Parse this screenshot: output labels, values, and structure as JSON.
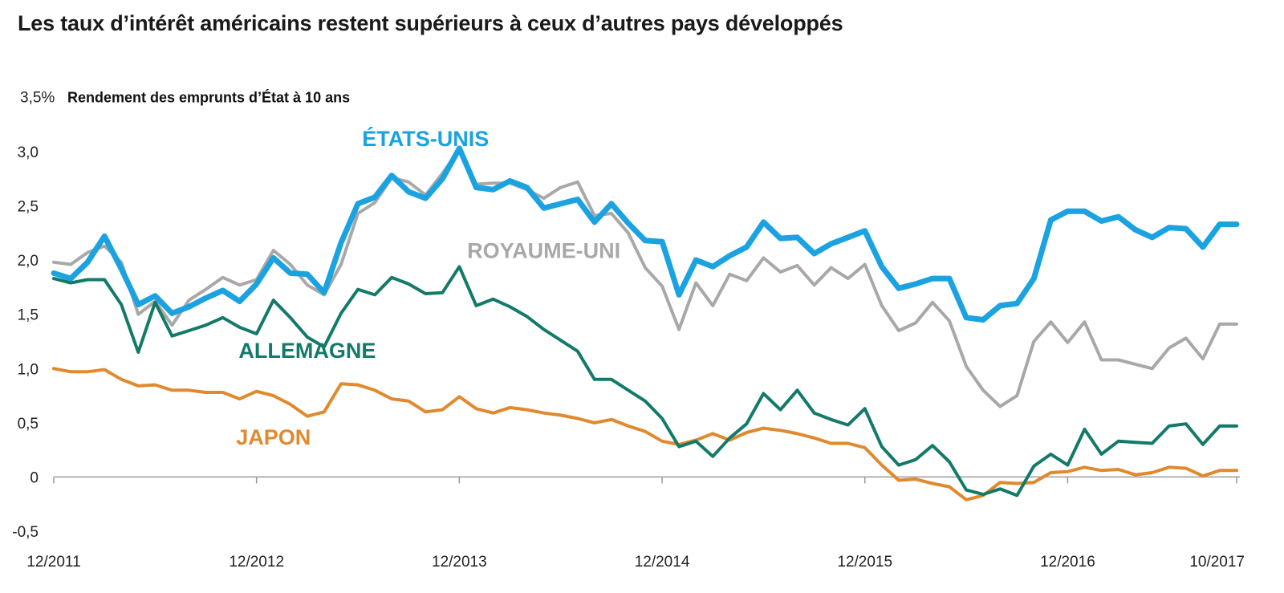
{
  "title": "Les taux d’intérêt américains restent supérieurs à ceux d’autres pays développés",
  "chart_data": {
    "type": "line",
    "title": "Les taux d’intérêt américains restent supérieurs à ceux d’autres pays développés",
    "ylabel": "Rendement des emprunts d’État à 10 ans",
    "ytop_label": "3,5%",
    "ylim": [
      -0.5,
      3.5
    ],
    "yticks": [
      {
        "value": 3.0,
        "label": "3,0"
      },
      {
        "value": 2.5,
        "label": "2,5"
      },
      {
        "value": 2.0,
        "label": "2,0"
      },
      {
        "value": 1.5,
        "label": "1,5"
      },
      {
        "value": 1.0,
        "label": "1,0"
      },
      {
        "value": 0.5,
        "label": "0,5"
      },
      {
        "value": 0,
        "label": "0"
      },
      {
        "value": -0.5,
        "label": "-0,5"
      }
    ],
    "xlim": [
      "2011-12",
      "2017-10"
    ],
    "xticks": [
      {
        "value": "2011-12",
        "label": "12/2011"
      },
      {
        "value": "2012-12",
        "label": "12/2012"
      },
      {
        "value": "2013-12",
        "label": "12/2013"
      },
      {
        "value": "2014-12",
        "label": "12/2014"
      },
      {
        "value": "2015-12",
        "label": "12/2015"
      },
      {
        "value": "2016-12",
        "label": "12/2016"
      },
      {
        "value": "2017-10",
        "label": "10/2017"
      }
    ],
    "grid": false,
    "legend": "inline labels",
    "x": [
      "2011-12",
      "2012-01",
      "2012-02",
      "2012-03",
      "2012-04",
      "2012-05",
      "2012-06",
      "2012-07",
      "2012-08",
      "2012-09",
      "2012-10",
      "2012-11",
      "2012-12",
      "2013-01",
      "2013-02",
      "2013-03",
      "2013-04",
      "2013-05",
      "2013-06",
      "2013-07",
      "2013-08",
      "2013-09",
      "2013-10",
      "2013-11",
      "2013-12",
      "2014-01",
      "2014-02",
      "2014-03",
      "2014-04",
      "2014-05",
      "2014-06",
      "2014-07",
      "2014-08",
      "2014-09",
      "2014-10",
      "2014-11",
      "2014-12",
      "2015-01",
      "2015-02",
      "2015-03",
      "2015-04",
      "2015-05",
      "2015-06",
      "2015-07",
      "2015-08",
      "2015-09",
      "2015-10",
      "2015-11",
      "2015-12",
      "2016-01",
      "2016-02",
      "2016-03",
      "2016-04",
      "2016-05",
      "2016-06",
      "2016-07",
      "2016-08",
      "2016-09",
      "2016-10",
      "2016-11",
      "2016-12",
      "2017-01",
      "2017-02",
      "2017-03",
      "2017-04",
      "2017-05",
      "2017-06",
      "2017-07",
      "2017-08",
      "2017-09",
      "2017-10"
    ],
    "series": [
      {
        "name": "ÉTATS-UNIS",
        "color": "#1aa3e0",
        "width": 7,
        "label_x": "2013-10",
        "label_y": 3.05,
        "values": [
          1.88,
          1.83,
          1.98,
          2.22,
          1.92,
          1.59,
          1.67,
          1.51,
          1.57,
          1.65,
          1.72,
          1.62,
          1.78,
          2.02,
          1.88,
          1.87,
          1.7,
          2.16,
          2.52,
          2.58,
          2.78,
          2.63,
          2.57,
          2.75,
          3.03,
          2.67,
          2.65,
          2.73,
          2.67,
          2.48,
          2.52,
          2.56,
          2.35,
          2.52,
          2.34,
          2.18,
          2.17,
          1.68,
          2.0,
          1.94,
          2.04,
          2.12,
          2.35,
          2.2,
          2.21,
          2.06,
          2.15,
          2.21,
          2.27,
          1.94,
          1.74,
          1.78,
          1.83,
          1.83,
          1.47,
          1.45,
          1.58,
          1.6,
          1.83,
          2.37,
          2.45,
          2.45,
          2.36,
          2.4,
          2.28,
          2.21,
          2.3,
          2.29,
          2.12,
          2.33,
          2.33
        ]
      },
      {
        "name": "ROYAUME-UNI",
        "color": "#a8a8a8",
        "width": 4,
        "label_x": "2014-05",
        "label_y": 2.02,
        "values": [
          1.98,
          1.96,
          2.07,
          2.13,
          1.98,
          1.5,
          1.62,
          1.4,
          1.63,
          1.73,
          1.84,
          1.77,
          1.82,
          2.09,
          1.96,
          1.77,
          1.68,
          1.96,
          2.43,
          2.53,
          2.76,
          2.72,
          2.6,
          2.8,
          3.02,
          2.7,
          2.71,
          2.71,
          2.65,
          2.57,
          2.67,
          2.72,
          2.41,
          2.43,
          2.25,
          1.93,
          1.76,
          1.36,
          1.79,
          1.58,
          1.87,
          1.81,
          2.02,
          1.89,
          1.95,
          1.77,
          1.93,
          1.83,
          1.96,
          1.58,
          1.35,
          1.42,
          1.61,
          1.44,
          1.02,
          0.8,
          0.65,
          0.75,
          1.25,
          1.43,
          1.24,
          1.43,
          1.08,
          1.08,
          1.04,
          1.0,
          1.19,
          1.28,
          1.09,
          1.41,
          1.41
        ]
      },
      {
        "name": "ALLEMAGNE",
        "color": "#137a6a",
        "width": 4,
        "label_x": "2013-03",
        "label_y": 1.1,
        "values": [
          1.83,
          1.79,
          1.82,
          1.82,
          1.59,
          1.15,
          1.61,
          1.3,
          1.35,
          1.4,
          1.47,
          1.38,
          1.32,
          1.63,
          1.47,
          1.29,
          1.2,
          1.51,
          1.73,
          1.68,
          1.84,
          1.78,
          1.69,
          1.7,
          1.94,
          1.58,
          1.64,
          1.57,
          1.48,
          1.36,
          1.26,
          1.16,
          0.9,
          0.9,
          0.8,
          0.7,
          0.54,
          0.28,
          0.33,
          0.19,
          0.36,
          0.49,
          0.77,
          0.62,
          0.8,
          0.59,
          0.53,
          0.48,
          0.63,
          0.28,
          0.11,
          0.16,
          0.29,
          0.14,
          -0.12,
          -0.16,
          -0.11,
          -0.17,
          0.1,
          0.21,
          0.11,
          0.44,
          0.21,
          0.33,
          0.32,
          0.31,
          0.47,
          0.49,
          0.3,
          0.47,
          0.47
        ]
      },
      {
        "name": "JAPON",
        "color": "#e0892e",
        "width": 4,
        "label_x": "2013-01",
        "label_y": 0.3,
        "values": [
          1.0,
          0.97,
          0.97,
          0.99,
          0.9,
          0.84,
          0.85,
          0.8,
          0.8,
          0.78,
          0.78,
          0.72,
          0.79,
          0.75,
          0.67,
          0.56,
          0.6,
          0.86,
          0.85,
          0.8,
          0.72,
          0.7,
          0.6,
          0.62,
          0.74,
          0.63,
          0.59,
          0.64,
          0.62,
          0.59,
          0.57,
          0.54,
          0.5,
          0.53,
          0.47,
          0.42,
          0.33,
          0.3,
          0.34,
          0.4,
          0.34,
          0.41,
          0.45,
          0.43,
          0.4,
          0.36,
          0.31,
          0.31,
          0.27,
          0.11,
          -0.03,
          -0.02,
          -0.06,
          -0.09,
          -0.21,
          -0.17,
          -0.05,
          -0.06,
          -0.05,
          0.04,
          0.05,
          0.09,
          0.06,
          0.07,
          0.02,
          0.04,
          0.09,
          0.08,
          0.01,
          0.06,
          0.06
        ]
      }
    ]
  }
}
